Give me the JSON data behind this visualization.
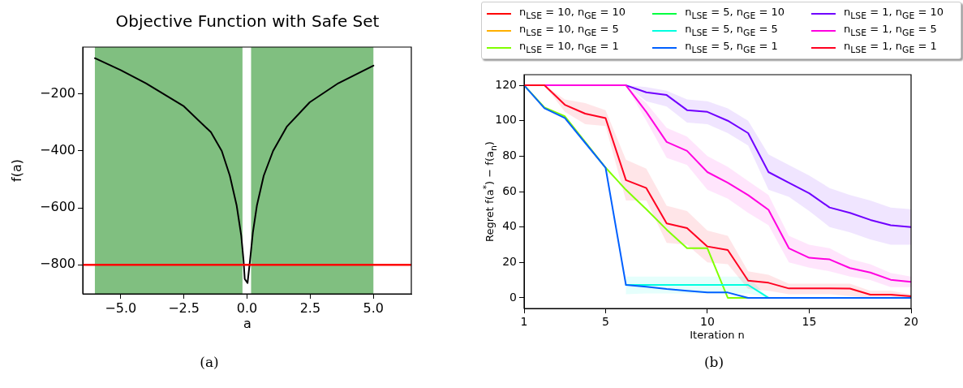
{
  "chart_data": [
    {
      "type": "line",
      "title": "Objective Function with Safe Set",
      "xlabel": "a",
      "ylabel": "f(a)",
      "x": [
        -6.02,
        -5,
        -4,
        -2.5,
        -1.43,
        -1.0,
        -0.68,
        -0.41,
        -0.23,
        -0.14,
        -0.09,
        0.02,
        0.12,
        0.23,
        0.39,
        0.66,
        1.03,
        1.57,
        2.48,
        3.61,
        5.0
      ],
      "series": [
        {
          "color": "#000000",
          "values": [
            -74,
            -116,
            -162,
            -243,
            -334,
            -400,
            -487,
            -592,
            -697,
            -783,
            -850,
            -864,
            -783,
            -687,
            -592,
            -487,
            -400,
            -315,
            -229,
            -162,
            -100
          ]
        }
      ],
      "xlim": [
        -6.5,
        6.5
      ],
      "ylim": [
        -902,
        -35
      ],
      "xticks": [
        {
          "value": -5,
          "label": "−5.0"
        },
        {
          "value": -2.5,
          "label": "−2.5"
        },
        {
          "value": 0,
          "label": "0.0"
        },
        {
          "value": 2.5,
          "label": "2.5"
        },
        {
          "value": 5,
          "label": "5.0"
        }
      ],
      "yticks": [
        {
          "value": -800,
          "label": "−800"
        },
        {
          "value": -600,
          "label": "−600"
        },
        {
          "value": -400,
          "label": "−400"
        },
        {
          "value": -200,
          "label": "−200"
        }
      ],
      "bands": [
        {
          "axis": "x",
          "from": -6.02,
          "to": -0.18,
          "color": "#80bf80"
        },
        {
          "axis": "x",
          "from": 0.16,
          "to": 5.0,
          "color": "#80bf80"
        }
      ],
      "ref_lines": [
        {
          "axis": "y",
          "value": -800,
          "color": "#ff0000"
        }
      ],
      "annotations": [
        "(a)"
      ],
      "grid": false,
      "legend": false
    },
    {
      "type": "line",
      "xlabel": "Iteration n",
      "ylabel": "Regret f(a$^{*}$) − f(a$_{n}$)",
      "x": [
        1,
        2,
        3,
        4,
        5,
        6,
        7,
        8,
        9,
        10,
        11,
        12,
        13,
        14,
        15,
        16,
        17,
        18,
        19,
        20
      ],
      "series": [
        {
          "name": "n$_{LSE}$ = 10, n$_{GE}$ = 10",
          "color": "#ff0000",
          "values": [
            null,
            null,
            null,
            null,
            null,
            null,
            null,
            null,
            null,
            null,
            null,
            null,
            null,
            null,
            null,
            null,
            null,
            null,
            null,
            null
          ]
        },
        {
          "name": "n$_{LSE}$ = 10, n$_{GE}$ = 5",
          "color": "#ffb000",
          "values": [
            null,
            null,
            null,
            null,
            null,
            null,
            null,
            null,
            null,
            null,
            null,
            null,
            null,
            null,
            null,
            null,
            null,
            null,
            null,
            null
          ]
        },
        {
          "name": "n$_{LSE}$ = 10, n$_{GE}$ = 1",
          "color": "#80ff00",
          "values": [
            120,
            107.5,
            102.5,
            88,
            73.5,
            61,
            50,
            38.5,
            28,
            28,
            0,
            0,
            null,
            null,
            null,
            null,
            null,
            null,
            null,
            null
          ]
        },
        {
          "name": "n$_{LSE}$ = 5, n$_{GE}$ = 10",
          "color": "#00ff40",
          "values": [
            null,
            null,
            null,
            null,
            null,
            null,
            null,
            null,
            null,
            null,
            null,
            null,
            null,
            null,
            null,
            null,
            null,
            null,
            null,
            null
          ]
        },
        {
          "name": "n$_{LSE}$ = 5, n$_{GE}$ = 5",
          "color": "#00ffe0",
          "values": [
            null,
            null,
            null,
            null,
            null,
            7.3,
            7.3,
            7.3,
            7.3,
            7.3,
            7.3,
            7.3,
            0,
            null,
            null,
            null,
            null,
            null,
            null,
            null
          ],
          "lower": [
            null,
            null,
            null,
            null,
            null,
            2,
            2.5,
            2.5,
            2.5,
            2.5,
            2.5,
            2.5,
            0,
            null,
            null,
            null,
            null,
            null,
            null,
            null
          ],
          "upper": [
            null,
            null,
            null,
            null,
            null,
            12,
            12,
            12,
            12,
            12,
            12,
            12,
            0,
            null,
            null,
            null,
            null,
            null,
            null,
            null
          ]
        },
        {
          "name": "n$_{LSE}$ = 5, n$_{GE}$ = 1",
          "color": "#0060ff",
          "values": [
            120,
            107,
            101.5,
            87.5,
            73.5,
            7.3,
            6.3,
            5,
            4,
            3,
            3,
            0,
            0,
            0,
            0,
            0,
            0,
            0,
            0,
            0
          ]
        },
        {
          "name": "n$_{LSE}$ = 1, n$_{GE}$ = 10",
          "color": "#7000ff",
          "values": [
            null,
            null,
            null,
            null,
            null,
            120,
            116,
            114.5,
            106,
            105,
            100,
            93,
            71,
            65,
            59,
            51,
            48,
            44,
            41,
            40
          ],
          "lower": [
            null,
            null,
            null,
            null,
            null,
            120,
            111,
            108,
            99,
            98,
            93,
            86,
            61,
            57,
            49,
            40,
            37,
            33,
            30,
            30
          ],
          "upper": [
            null,
            null,
            null,
            null,
            null,
            120,
            119,
            117,
            112,
            111,
            107,
            100,
            81,
            75,
            69,
            62,
            58,
            55,
            51,
            50
          ]
        },
        {
          "name": "n$_{LSE}$ = 1, n$_{GE}$ = 5",
          "color": "#ff00e0",
          "values": [
            120,
            120,
            120,
            120,
            120,
            120,
            105,
            88,
            83,
            71,
            65,
            58,
            49.7,
            28,
            22.6,
            21.7,
            16.8,
            14.3,
            10.2,
            9
          ],
          "lower": [
            120,
            120,
            120,
            120,
            120,
            120,
            100,
            79,
            75,
            61,
            56,
            48,
            41,
            20,
            17,
            15,
            12,
            10,
            6,
            6
          ],
          "upper": [
            120,
            120,
            120,
            120,
            120,
            120,
            110,
            96,
            91,
            80,
            74,
            66,
            58,
            35,
            30,
            28,
            22,
            19,
            14,
            12
          ]
        },
        {
          "name": "n$_{LSE}$ = 1, n$_{GE}$ = 1",
          "color": "#ff0020",
          "values": [
            120,
            120,
            109,
            104,
            101.5,
            66.5,
            62,
            42,
            39.4,
            29,
            27,
            9.7,
            8.5,
            5.3,
            5.3,
            5.3,
            5.2,
            1.8,
            1.8,
            0.9
          ],
          "lower": [
            120,
            120,
            105,
            98,
            97,
            55,
            55,
            31,
            30,
            20,
            19,
            5,
            4,
            2,
            2,
            2,
            1,
            0,
            0,
            0
          ],
          "upper": [
            120,
            120,
            112,
            110,
            106,
            78,
            73,
            52,
            49,
            38,
            35,
            15,
            13,
            8,
            8,
            8,
            8,
            4,
            4,
            2
          ]
        }
      ],
      "xlim": [
        1,
        20
      ],
      "ylim": [
        -6,
        126
      ],
      "xticks": [
        1,
        5,
        10,
        15,
        20
      ],
      "yticks": [
        0,
        20,
        40,
        60,
        80,
        100,
        120
      ],
      "annotations": [
        "(b)"
      ],
      "grid": false,
      "legend": "top"
    }
  ]
}
